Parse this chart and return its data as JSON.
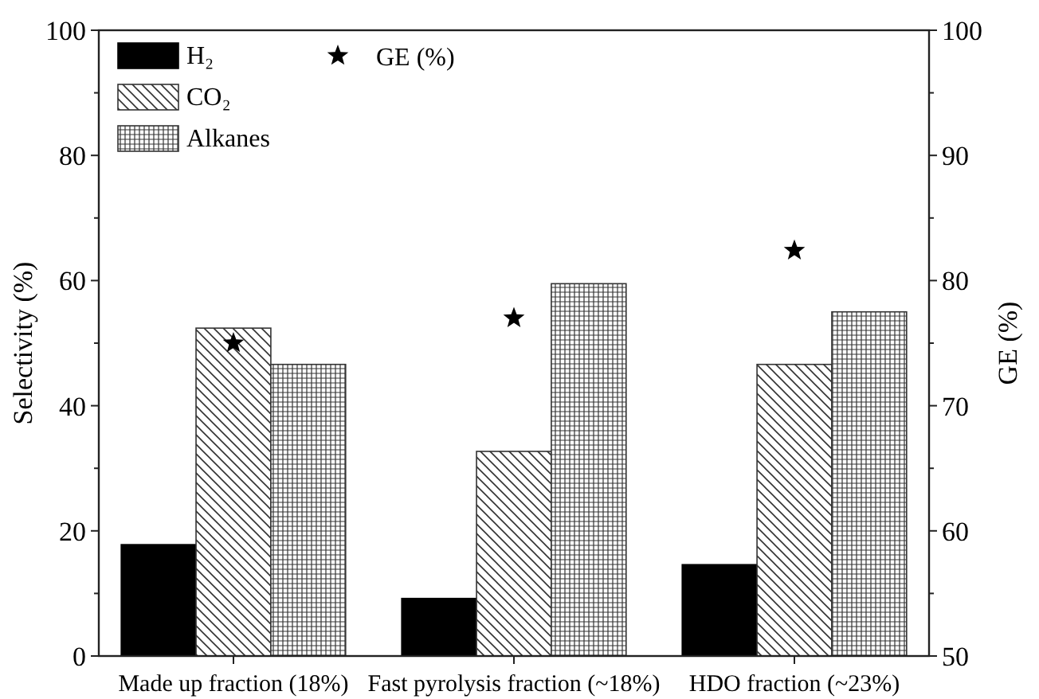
{
  "chart_data": {
    "type": "bar",
    "xlabel": null,
    "ylabel": "Selectivity (%)",
    "y2label": "GE (%)",
    "categories": [
      "Made up fraction (18%)",
      "Fast pyrolysis fraction (~18%)",
      "HDO fraction (~23%)"
    ],
    "series": [
      {
        "name": "H₂",
        "color": "#000000",
        "values": [
          17.8,
          9.2,
          14.6
        ]
      },
      {
        "name": "CO₂",
        "color": "#333333",
        "values": [
          52.4,
          32.7,
          46.6
        ]
      },
      {
        "name": "Alkanes",
        "color": "#333333",
        "values": [
          46.6,
          59.5,
          55.0
        ]
      },
      {
        "name": "GE (%)",
        "type": "scatter",
        "axis": "y2",
        "marker": "star",
        "color": "#000000",
        "values": [
          75.0,
          77.0,
          82.4
        ]
      }
    ],
    "ylim": [
      0,
      100
    ],
    "yticks": [
      0,
      {
        "value": 10,
        "label": null
      },
      20,
      {
        "value": 30,
        "label": null
      },
      40,
      {
        "value": 50,
        "label": null
      },
      60,
      {
        "value": 70,
        "label": null
      },
      80,
      {
        "value": 90,
        "label": null
      },
      100
    ],
    "y2lim": [
      50,
      100
    ],
    "y2ticks": [
      50,
      {
        "value": 55,
        "label": null
      },
      60,
      {
        "value": 65,
        "label": null
      },
      70,
      {
        "value": 75,
        "label": null
      },
      80,
      {
        "value": 85,
        "label": null
      },
      90,
      {
        "value": 95,
        "label": null
      },
      100
    ],
    "legend": "top left",
    "grid": false
  }
}
